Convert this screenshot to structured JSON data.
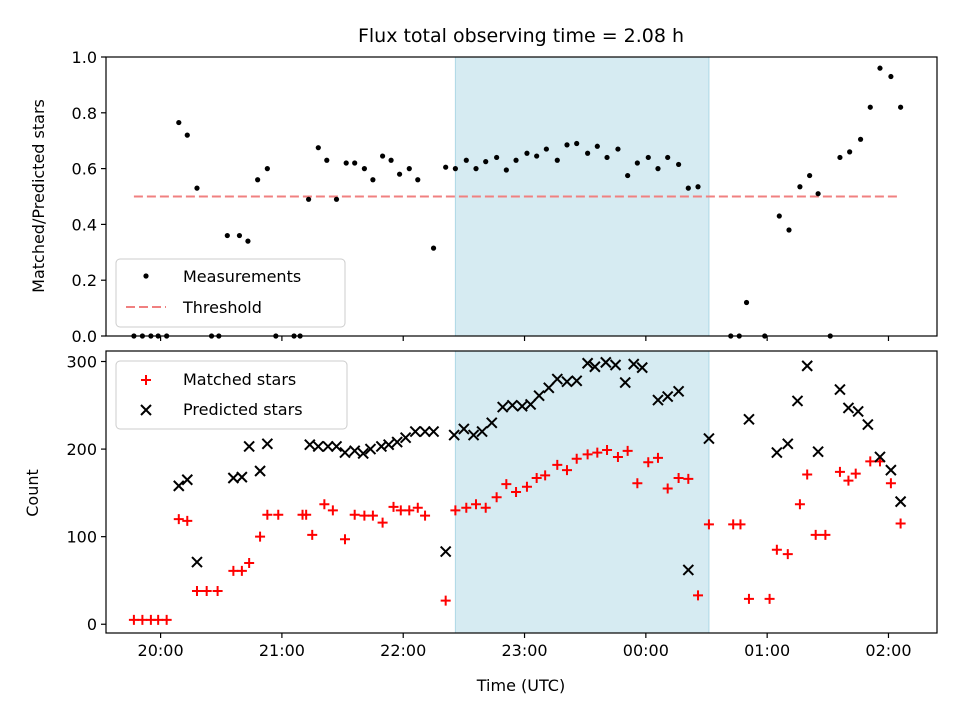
{
  "chart_data": {
    "type": "scatter",
    "title": "Flux total observing time = 2.08 h",
    "xlabel": "Time (UTC)",
    "x_tick_labels": [
      "20:00",
      "21:00",
      "22:00",
      "23:00",
      "00:00",
      "01:00",
      "02:00"
    ],
    "x_tick_hours": [
      20,
      21,
      22,
      23,
      24,
      25,
      26
    ],
    "xlim_hours": [
      19.55,
      26.4
    ],
    "shaded_span_hours": [
      22.43,
      24.52
    ],
    "shade_color": "#add8e6",
    "panels": [
      {
        "id": "ratio",
        "ylabel": "Matched/Predicted stars",
        "ylim": [
          0,
          1.0
        ],
        "yticks": [
          0.0,
          0.2,
          0.4,
          0.6,
          0.8,
          1.0
        ],
        "ytick_labels": [
          "0.0",
          "0.2",
          "0.4",
          "0.6",
          "0.8",
          "1.0"
        ],
        "legend_position": "lower-left",
        "threshold": {
          "name": "Threshold",
          "y": 0.5,
          "x_range": [
            19.78,
            26.1
          ],
          "color": "#f08080"
        },
        "series": [
          {
            "name": "Measurements",
            "marker": "dot",
            "color": "#000000",
            "points": [
              [
                19.78,
                0
              ],
              [
                19.85,
                0
              ],
              [
                19.92,
                0
              ],
              [
                19.98,
                0
              ],
              [
                20.05,
                0
              ],
              [
                20.15,
                0.765
              ],
              [
                20.22,
                0.72
              ],
              [
                20.3,
                0.53
              ],
              [
                20.42,
                0
              ],
              [
                20.48,
                0
              ],
              [
                20.55,
                0.36
              ],
              [
                20.65,
                0.36
              ],
              [
                20.72,
                0.34
              ],
              [
                20.8,
                0.56
              ],
              [
                20.88,
                0.6
              ],
              [
                20.95,
                0
              ],
              [
                21.1,
                0
              ],
              [
                21.15,
                0
              ],
              [
                21.22,
                0.49
              ],
              [
                21.3,
                0.675
              ],
              [
                21.37,
                0.63
              ],
              [
                21.45,
                0.49
              ],
              [
                21.53,
                0.62
              ],
              [
                21.6,
                0.62
              ],
              [
                21.68,
                0.6
              ],
              [
                21.75,
                0.56
              ],
              [
                21.83,
                0.645
              ],
              [
                21.9,
                0.63
              ],
              [
                21.97,
                0.58
              ],
              [
                22.05,
                0.6
              ],
              [
                22.12,
                0.56
              ],
              [
                22.25,
                0.315
              ],
              [
                22.35,
                0.605
              ],
              [
                22.43,
                0.6
              ],
              [
                22.52,
                0.63
              ],
              [
                22.6,
                0.6
              ],
              [
                22.68,
                0.625
              ],
              [
                22.77,
                0.64
              ],
              [
                22.85,
                0.595
              ],
              [
                22.93,
                0.63
              ],
              [
                23.02,
                0.655
              ],
              [
                23.1,
                0.645
              ],
              [
                23.18,
                0.67
              ],
              [
                23.27,
                0.63
              ],
              [
                23.35,
                0.685
              ],
              [
                23.43,
                0.69
              ],
              [
                23.52,
                0.655
              ],
              [
                23.6,
                0.68
              ],
              [
                23.68,
                0.64
              ],
              [
                23.77,
                0.67
              ],
              [
                23.85,
                0.575
              ],
              [
                23.93,
                0.62
              ],
              [
                24.02,
                0.64
              ],
              [
                24.1,
                0.6
              ],
              [
                24.18,
                0.64
              ],
              [
                24.27,
                0.615
              ],
              [
                24.35,
                0.53
              ],
              [
                24.43,
                0.535
              ],
              [
                24.7,
                0
              ],
              [
                24.77,
                0
              ],
              [
                24.83,
                0.12
              ],
              [
                24.98,
                0
              ],
              [
                25.1,
                0.43
              ],
              [
                25.18,
                0.38
              ],
              [
                25.27,
                0.535
              ],
              [
                25.35,
                0.575
              ],
              [
                25.42,
                0.51
              ],
              [
                25.52,
                0
              ],
              [
                25.6,
                0.64
              ],
              [
                25.68,
                0.66
              ],
              [
                25.77,
                0.705
              ],
              [
                25.85,
                0.82
              ],
              [
                25.93,
                0.96
              ],
              [
                26.02,
                0.93
              ],
              [
                26.1,
                0.82
              ]
            ]
          }
        ]
      },
      {
        "id": "counts",
        "ylabel": "Count",
        "ylim": [
          -10,
          312
        ],
        "yticks": [
          0,
          100,
          200,
          300
        ],
        "ytick_labels": [
          "0",
          "100",
          "200",
          "300"
        ],
        "legend_position": "upper-left",
        "series": [
          {
            "name": "Matched stars",
            "marker": "plus",
            "color": "#ff0000",
            "points": [
              [
                19.78,
                5
              ],
              [
                19.85,
                5
              ],
              [
                19.92,
                5
              ],
              [
                19.98,
                5
              ],
              [
                20.05,
                5
              ],
              [
                20.15,
                120
              ],
              [
                20.22,
                118
              ],
              [
                20.3,
                38
              ],
              [
                20.38,
                38
              ],
              [
                20.47,
                38
              ],
              [
                20.6,
                61
              ],
              [
                20.67,
                61
              ],
              [
                20.73,
                70
              ],
              [
                20.82,
                100
              ],
              [
                20.88,
                125
              ],
              [
                20.97,
                125
              ],
              [
                21.17,
                125
              ],
              [
                21.2,
                125
              ],
              [
                21.25,
                102
              ],
              [
                21.35,
                137
              ],
              [
                21.42,
                130
              ],
              [
                21.52,
                97
              ],
              [
                21.6,
                125
              ],
              [
                21.68,
                124
              ],
              [
                21.75,
                124
              ],
              [
                21.83,
                116
              ],
              [
                21.92,
                134
              ],
              [
                21.98,
                130
              ],
              [
                22.05,
                130
              ],
              [
                22.12,
                133
              ],
              [
                22.18,
                124
              ],
              [
                22.35,
                27
              ],
              [
                22.43,
                130
              ],
              [
                22.52,
                133
              ],
              [
                22.6,
                137
              ],
              [
                22.68,
                133
              ],
              [
                22.77,
                145
              ],
              [
                22.85,
                160
              ],
              [
                22.93,
                151
              ],
              [
                23.02,
                157
              ],
              [
                23.1,
                167
              ],
              [
                23.17,
                170
              ],
              [
                23.27,
                182
              ],
              [
                23.35,
                176
              ],
              [
                23.43,
                189
              ],
              [
                23.52,
                194
              ],
              [
                23.6,
                196
              ],
              [
                23.68,
                199
              ],
              [
                23.77,
                191
              ],
              [
                23.85,
                198
              ],
              [
                23.93,
                161
              ],
              [
                24.02,
                185
              ],
              [
                24.1,
                190
              ],
              [
                24.18,
                155
              ],
              [
                24.27,
                167
              ],
              [
                24.35,
                166
              ],
              [
                24.43,
                33
              ],
              [
                24.52,
                114
              ],
              [
                24.72,
                114
              ],
              [
                24.78,
                114
              ],
              [
                24.85,
                29
              ],
              [
                25.02,
                29
              ],
              [
                25.08,
                85
              ],
              [
                25.17,
                80
              ],
              [
                25.27,
                137
              ],
              [
                25.33,
                171
              ],
              [
                25.4,
                102
              ],
              [
                25.48,
                102
              ],
              [
                25.6,
                174
              ],
              [
                25.67,
                164
              ],
              [
                25.73,
                172
              ],
              [
                25.85,
                186
              ],
              [
                25.93,
                186
              ],
              [
                26.02,
                161
              ],
              [
                26.1,
                115
              ]
            ]
          },
          {
            "name": "Predicted stars",
            "marker": "x",
            "color": "#000000",
            "points": [
              [
                20.15,
                158
              ],
              [
                20.22,
                165
              ],
              [
                20.3,
                71
              ],
              [
                20.6,
                167
              ],
              [
                20.67,
                168
              ],
              [
                20.73,
                203
              ],
              [
                20.82,
                175
              ],
              [
                20.88,
                206
              ],
              [
                21.23,
                205
              ],
              [
                21.3,
                203
              ],
              [
                21.38,
                203
              ],
              [
                21.45,
                203
              ],
              [
                21.52,
                196
              ],
              [
                21.6,
                198
              ],
              [
                21.67,
                195
              ],
              [
                21.73,
                200
              ],
              [
                21.82,
                203
              ],
              [
                21.88,
                205
              ],
              [
                21.95,
                208
              ],
              [
                22.02,
                213
              ],
              [
                22.1,
                220
              ],
              [
                22.18,
                220
              ],
              [
                22.25,
                220
              ],
              [
                22.35,
                83
              ],
              [
                22.42,
                216
              ],
              [
                22.5,
                223
              ],
              [
                22.58,
                216
              ],
              [
                22.65,
                220
              ],
              [
                22.73,
                230
              ],
              [
                22.82,
                248
              ],
              [
                22.9,
                250
              ],
              [
                22.98,
                249
              ],
              [
                23.05,
                251
              ],
              [
                23.12,
                261
              ],
              [
                23.2,
                270
              ],
              [
                23.27,
                280
              ],
              [
                23.35,
                277
              ],
              [
                23.43,
                278
              ],
              [
                23.52,
                298
              ],
              [
                23.58,
                294
              ],
              [
                23.67,
                299
              ],
              [
                23.75,
                296
              ],
              [
                23.83,
                276
              ],
              [
                23.9,
                297
              ],
              [
                23.97,
                293
              ],
              [
                24.1,
                256
              ],
              [
                24.18,
                260
              ],
              [
                24.27,
                266
              ],
              [
                24.35,
                62
              ],
              [
                24.52,
                212
              ],
              [
                24.85,
                234
              ],
              [
                25.08,
                196
              ],
              [
                25.17,
                206
              ],
              [
                25.25,
                255
              ],
              [
                25.33,
                295
              ],
              [
                25.42,
                197
              ],
              [
                25.6,
                268
              ],
              [
                25.67,
                247
              ],
              [
                25.75,
                243
              ],
              [
                25.83,
                228
              ],
              [
                25.93,
                191
              ],
              [
                26.02,
                176
              ],
              [
                26.1,
                140
              ]
            ]
          }
        ]
      }
    ]
  }
}
